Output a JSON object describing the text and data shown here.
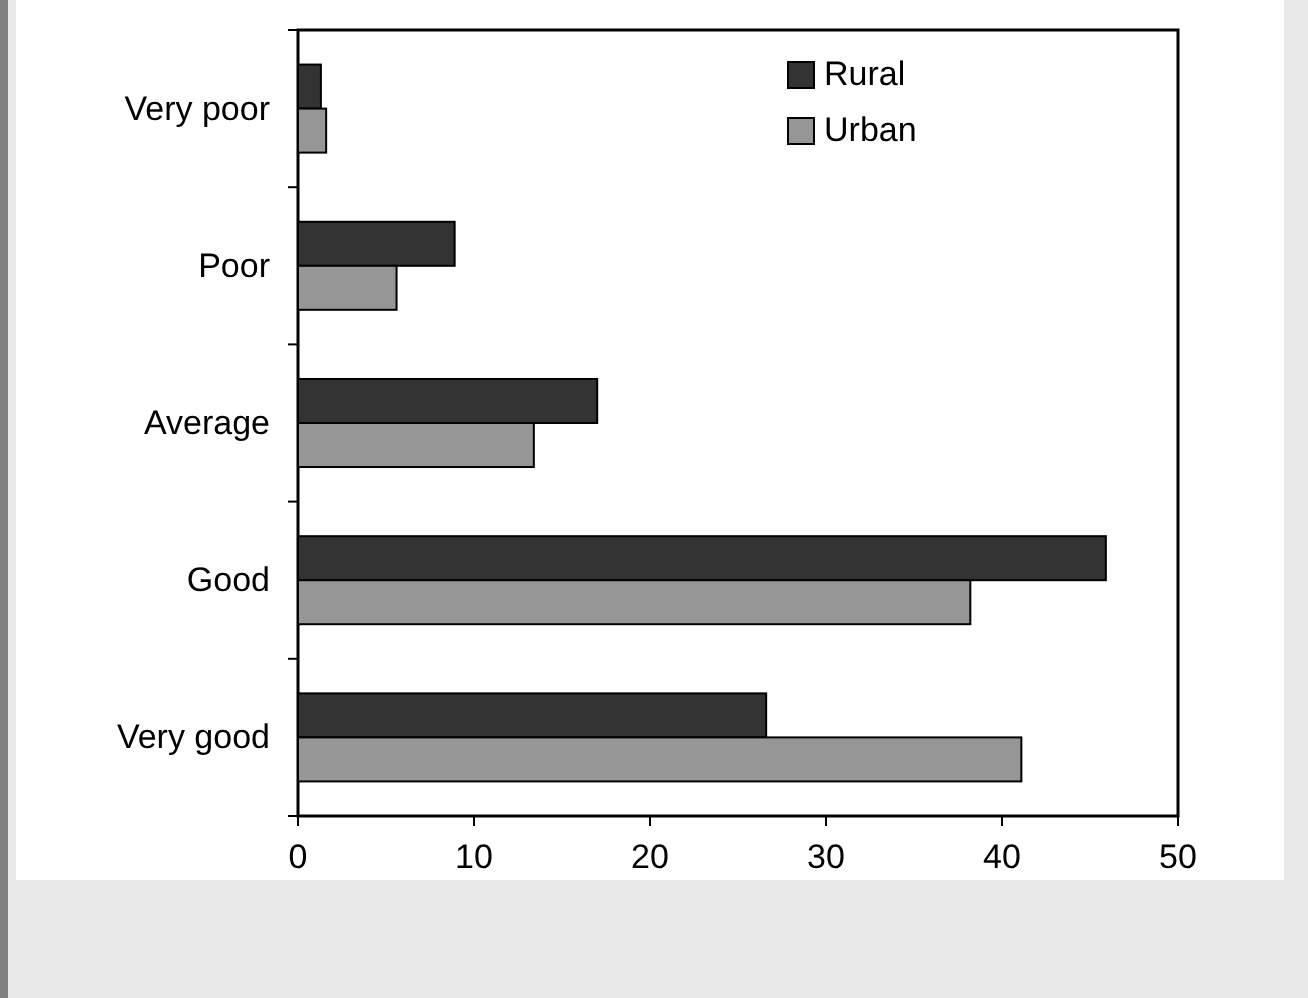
{
  "chart_data": {
    "type": "bar",
    "orientation": "horizontal",
    "categories": [
      "Very poor",
      "Poor",
      "Average",
      "Good",
      "Very good"
    ],
    "series": [
      {
        "name": "Rural",
        "color": "#333333",
        "values": [
          1.3,
          8.9,
          17.0,
          45.9,
          26.6
        ]
      },
      {
        "name": "Urban",
        "color": "#969696",
        "values": [
          1.6,
          5.6,
          13.4,
          38.2,
          41.1
        ]
      }
    ],
    "xlim": [
      0,
      50
    ],
    "xticks": [
      0,
      10,
      20,
      30,
      40,
      50
    ],
    "grid": false,
    "legend": "top right"
  }
}
